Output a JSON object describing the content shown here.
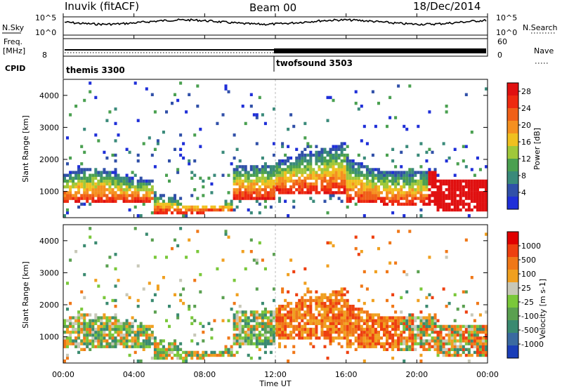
{
  "header": {
    "station": "Inuvik (fitACF)",
    "beam": "Beam 00",
    "date": "18/Dec/2014"
  },
  "top_panels": {
    "nsky_label": "N.Sky",
    "nsky_ticks": [
      "10^5",
      "10^0"
    ],
    "nsearch_label": "N.Search",
    "nsearch_ticks": [
      "10^5",
      "10^0"
    ],
    "freq_label": "Freq.",
    "freq_unit": "[MHz]",
    "freq_tick": "8",
    "freq_ticks_right": [
      "60",
      "0"
    ],
    "nave_label": "Nave",
    "cpid_label": "CPID",
    "cpid_modes": [
      {
        "name": "themis 3300",
        "start_hour": 0
      },
      {
        "name": "twofsound 3503",
        "start_hour": 12
      }
    ]
  },
  "chart_data": [
    {
      "type": "heatmap",
      "panel": "power",
      "ylabel": "Slant Range [km]",
      "ylim": [
        180,
        4500
      ],
      "yticks": [
        "1000",
        "2000",
        "3000",
        "4000"
      ],
      "xlim_hours": [
        0,
        24
      ],
      "colorbar": {
        "label": "Power [dB]",
        "ticks": [
          "4",
          "8",
          "12",
          "16",
          "20",
          "24",
          "28"
        ],
        "range": [
          0,
          30
        ],
        "colors": [
          "#1f2fd8",
          "#3050a8",
          "#3a8a7a",
          "#4aa050",
          "#a0c83a",
          "#f0c020",
          "#f59020",
          "#f06018",
          "#ee2a10",
          "#e01010"
        ]
      }
    },
    {
      "type": "heatmap",
      "panel": "velocity",
      "ylabel": "Slant Range [km]",
      "ylim": [
        180,
        4500
      ],
      "yticks": [
        "1000",
        "2000",
        "3000",
        "4000"
      ],
      "xlim_hours": [
        0,
        24
      ],
      "colorbar": {
        "label": "Velocity [m s-1]",
        "ticks": [
          "1000",
          "500",
          "100",
          "25",
          "-25",
          "-100",
          "-500",
          "-1000"
        ],
        "colors": [
          "#1a3eb8",
          "#3a6aa0",
          "#3a8a70",
          "#5aa050",
          "#7ac83a",
          "#c8c8b8",
          "#f0a020",
          "#f07818",
          "#ee4010",
          "#e00000"
        ]
      }
    }
  ],
  "xaxis": {
    "ticks": [
      "00:00",
      "04:00",
      "08:00",
      "12:00",
      "16:00",
      "20:00",
      "00:00"
    ],
    "label": "Time UT"
  }
}
